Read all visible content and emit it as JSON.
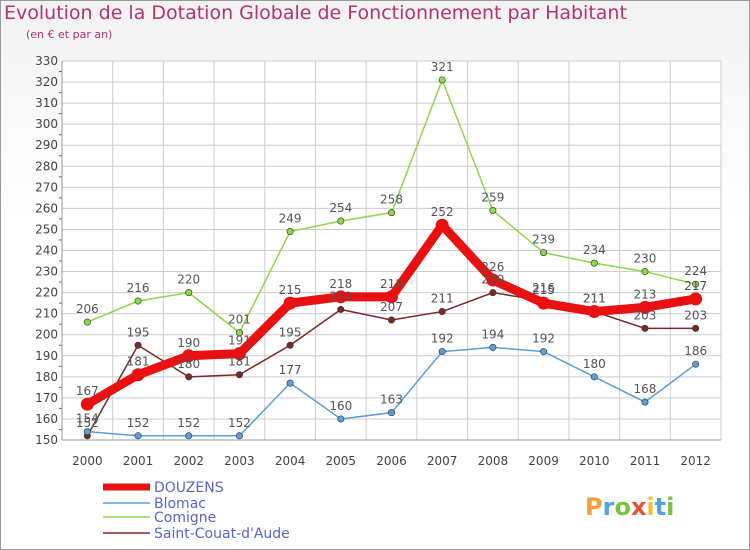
{
  "title": "Evolution de la Dotation Globale de Fonctionnement par Habitant",
  "subtitle": "(en € et par an)",
  "logo": "Proxiti",
  "chart_data": {
    "type": "line",
    "title": "Evolution de la Dotation Globale de Fonctionnement par Habitant",
    "subtitle": "(en € et par an)",
    "xlabel": "",
    "ylabel": "",
    "ylim": [
      150,
      330
    ],
    "yticks": [
      150,
      160,
      170,
      180,
      190,
      200,
      210,
      220,
      230,
      240,
      250,
      260,
      270,
      280,
      290,
      300,
      310,
      320,
      330
    ],
    "x": [
      "2000",
      "2001",
      "2002",
      "2003",
      "2004",
      "2005",
      "2006",
      "2007",
      "2008",
      "2009",
      "2010",
      "2011",
      "2012"
    ],
    "series": [
      {
        "name": "DOUZENS",
        "color": "#e81010",
        "values": [
          167,
          181,
          190,
          191,
          215,
          218,
          218,
          252,
          226,
          215,
          211,
          213,
          217
        ]
      },
      {
        "name": "Blomac",
        "color": "#5a9fd6",
        "values": [
          154,
          152,
          152,
          152,
          177,
          160,
          163,
          192,
          194,
          192,
          180,
          168,
          186
        ]
      },
      {
        "name": "Comigne",
        "color": "#8ed64a",
        "values": [
          206,
          216,
          220,
          201,
          249,
          254,
          258,
          321,
          259,
          239,
          234,
          230,
          224
        ]
      },
      {
        "name": "Saint-Couat-d'Aude",
        "color": "#7a2828",
        "values": [
          152,
          195,
          180,
          181,
          195,
          212,
          207,
          211,
          220,
          216,
          211,
          203,
          203
        ]
      }
    ]
  }
}
